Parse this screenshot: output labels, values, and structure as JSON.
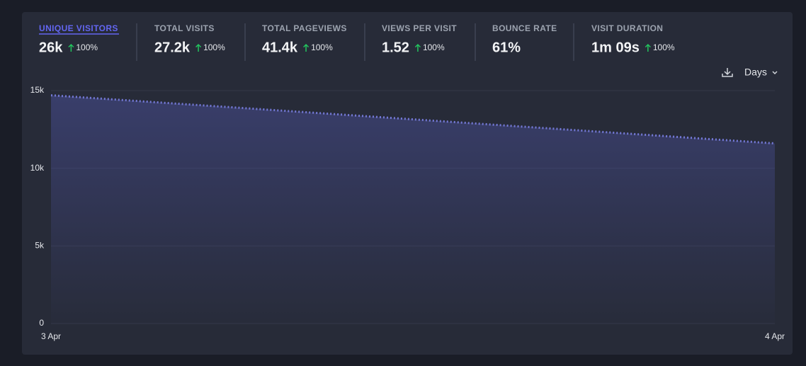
{
  "stats": [
    {
      "label": "UNIQUE VISITORS",
      "value": "26k",
      "change": "100%"
    },
    {
      "label": "TOTAL VISITS",
      "value": "27.2k",
      "change": "100%"
    },
    {
      "label": "TOTAL PAGEVIEWS",
      "value": "41.4k",
      "change": "100%"
    },
    {
      "label": "VIEWS PER VISIT",
      "value": "1.52",
      "change": "100%"
    },
    {
      "label": "BOUNCE RATE",
      "value": "61%"
    },
    {
      "label": "VISIT DURATION",
      "value": "1m 09s",
      "change": "100%"
    }
  ],
  "controls": {
    "interval": "Days"
  },
  "chart_data": {
    "type": "line",
    "x": [
      "3 Apr",
      "4 Apr"
    ],
    "values": [
      14700,
      11600
    ],
    "color": "#7479d6",
    "ylim": [
      0,
      15000
    ],
    "yticks": [
      0,
      {
        "value": 5000,
        "label": "5k"
      },
      {
        "value": 10000,
        "label": "10k"
      },
      {
        "value": 15000,
        "label": "15k"
      }
    ],
    "grid": true
  }
}
